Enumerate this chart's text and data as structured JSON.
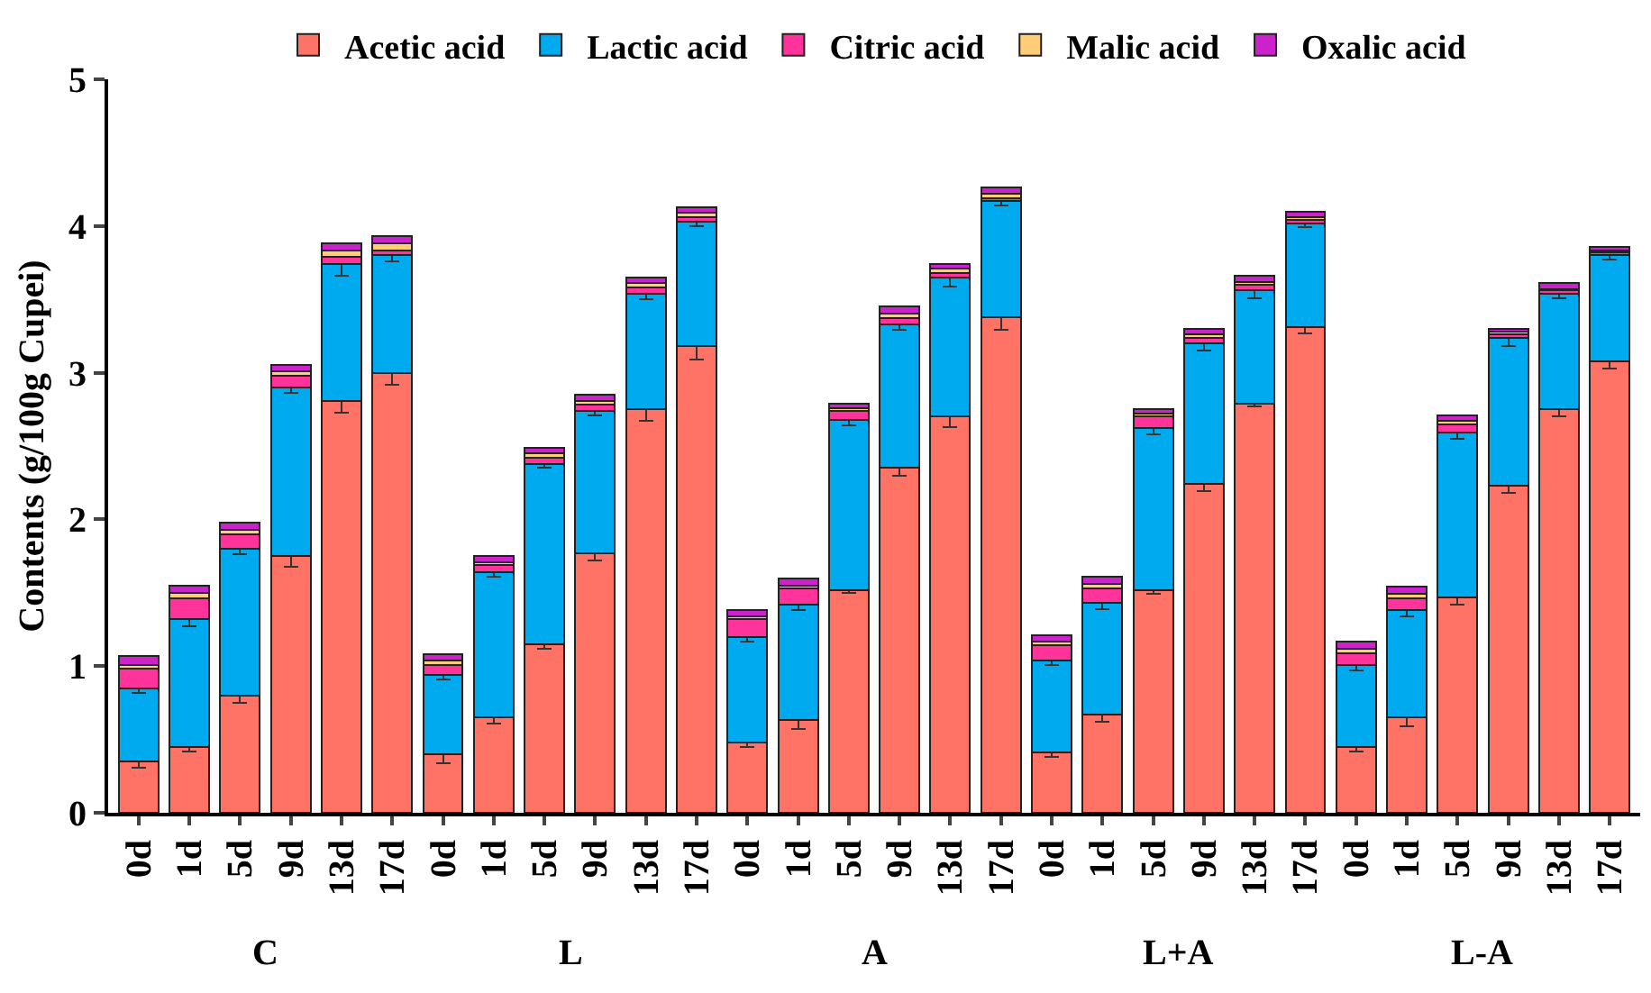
{
  "chart_data": {
    "type": "bar",
    "stacked": true,
    "ylabel": "Contents (g/100g Cupei)",
    "categories": [
      "0d",
      "1d",
      "5d",
      "9d",
      "13d",
      "17d",
      "0d",
      "1d",
      "5d",
      "9d",
      "13d",
      "17d",
      "0d",
      "1d",
      "5d",
      "9d",
      "13d",
      "17d",
      "0d",
      "1d",
      "5d",
      "9d",
      "13d",
      "17d",
      "0d",
      "1d",
      "5d",
      "9d",
      "13d",
      "17d"
    ],
    "annotations": [
      "C",
      "L",
      "A",
      "L+A",
      "L-A"
    ],
    "series": [
      {
        "name": "Acetic acid",
        "color": "#ff7366",
        "values": [
          0.35,
          0.45,
          0.8,
          1.75,
          2.81,
          3.0,
          0.4,
          0.65,
          1.15,
          1.77,
          2.75,
          3.18,
          0.48,
          0.63,
          1.52,
          2.35,
          2.7,
          3.38,
          0.41,
          0.67,
          1.52,
          2.24,
          2.79,
          3.31,
          0.45,
          0.65,
          1.47,
          2.23,
          2.75,
          3.08
        ],
        "errors": [
          0.04,
          0.03,
          0.05,
          0.07,
          0.08,
          0.08,
          0.06,
          0.04,
          0.03,
          0.05,
          0.08,
          0.09,
          0.03,
          0.06,
          0.02,
          0.05,
          0.07,
          0.09,
          0.03,
          0.05,
          0.03,
          0.05,
          0.02,
          0.04,
          0.03,
          0.06,
          0.05,
          0.05,
          0.05,
          0.05
        ]
      },
      {
        "name": "Lactic acid",
        "color": "#00aaee",
        "values": [
          0.5,
          0.87,
          1.0,
          1.15,
          0.93,
          0.8,
          0.54,
          0.99,
          1.23,
          0.97,
          0.79,
          0.85,
          0.72,
          0.79,
          1.16,
          0.98,
          0.95,
          0.79,
          0.63,
          0.76,
          1.1,
          0.96,
          0.77,
          0.71,
          0.56,
          0.73,
          1.12,
          1.01,
          0.79,
          0.72
        ],
        "errors": [
          0.03,
          0.05,
          0.04,
          0.04,
          0.08,
          0.04,
          0.03,
          0.03,
          0.03,
          0.03,
          0.04,
          0.03,
          0.03,
          0.04,
          0.04,
          0.04,
          0.06,
          0.03,
          0.03,
          0.04,
          0.04,
          0.05,
          0.05,
          0.03,
          0.04,
          0.04,
          0.04,
          0.06,
          0.03,
          0.03
        ]
      },
      {
        "name": "Citric acid",
        "color": "#ff3399",
        "values": [
          0.13,
          0.14,
          0.1,
          0.08,
          0.05,
          0.03,
          0.07,
          0.05,
          0.04,
          0.04,
          0.04,
          0.03,
          0.12,
          0.11,
          0.06,
          0.04,
          0.03,
          0.02,
          0.1,
          0.1,
          0.08,
          0.04,
          0.04,
          0.02,
          0.08,
          0.08,
          0.06,
          0.02,
          0.02,
          0.02
        ]
      },
      {
        "name": "Malic acid",
        "color": "#ffcc77",
        "values": [
          0.03,
          0.04,
          0.03,
          0.03,
          0.04,
          0.05,
          0.03,
          0.02,
          0.03,
          0.03,
          0.03,
          0.03,
          0.02,
          0.02,
          0.02,
          0.03,
          0.03,
          0.03,
          0.03,
          0.03,
          0.02,
          0.02,
          0.02,
          0.02,
          0.03,
          0.03,
          0.02,
          0.02,
          0.01,
          0.01
        ]
      },
      {
        "name": "Oxalic acid",
        "color": "#cc22cc",
        "values": [
          0.06,
          0.05,
          0.05,
          0.04,
          0.05,
          0.05,
          0.04,
          0.04,
          0.04,
          0.04,
          0.04,
          0.04,
          0.04,
          0.05,
          0.03,
          0.05,
          0.03,
          0.04,
          0.04,
          0.05,
          0.03,
          0.04,
          0.04,
          0.04,
          0.05,
          0.05,
          0.04,
          0.02,
          0.04,
          0.03
        ]
      }
    ],
    "ylim": [
      0,
      5
    ],
    "yticks": [
      0,
      1,
      2,
      3,
      4,
      5
    ],
    "grid": false,
    "legend": "top"
  }
}
